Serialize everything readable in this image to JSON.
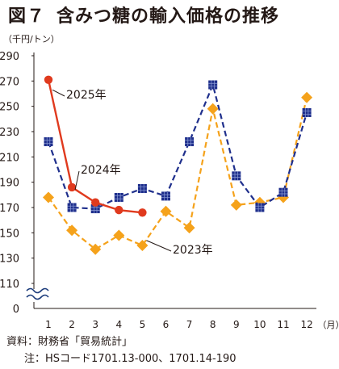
{
  "title": {
    "figure_no": "図７",
    "text": "含みつ糖の輸入価格の推移"
  },
  "unit": "（千円/トン）",
  "source": "資料：財務省「貿易統計」",
  "note": "注：HSコード1701.13-000、1701.14-190",
  "chart_data": {
    "type": "line",
    "x": [
      1,
      2,
      3,
      4,
      5,
      6,
      7,
      8,
      9,
      10,
      11,
      12
    ],
    "x_tick_labels": [
      "1",
      "2",
      "3",
      "4",
      "5",
      "6",
      "7",
      "8",
      "9",
      "10",
      "11",
      "12"
    ],
    "x_unit": "（月）",
    "y_ticks": [
      110,
      130,
      150,
      170,
      190,
      210,
      230,
      250,
      270,
      290
    ],
    "y_zero_label": "0",
    "ylim": [
      110,
      290
    ],
    "axis_break": true,
    "grid": false,
    "series": [
      {
        "name": "2025年",
        "color": "#e03a1e",
        "style": "solid",
        "marker": "circle",
        "values": [
          271,
          186,
          174,
          168,
          166,
          null,
          null,
          null,
          null,
          null,
          null,
          null
        ]
      },
      {
        "name": "2024年",
        "color": "#1f2f8c",
        "style": "dashed",
        "marker": "square",
        "values": [
          222,
          170,
          169,
          178,
          185,
          179,
          222,
          267,
          195,
          170,
          182,
          245
        ]
      },
      {
        "name": "2023年",
        "color": "#f5a21b",
        "style": "dashed",
        "marker": "diamond",
        "values": [
          178,
          152,
          137,
          148,
          140,
          167,
          154,
          248,
          172,
          174,
          178,
          257
        ]
      }
    ]
  }
}
